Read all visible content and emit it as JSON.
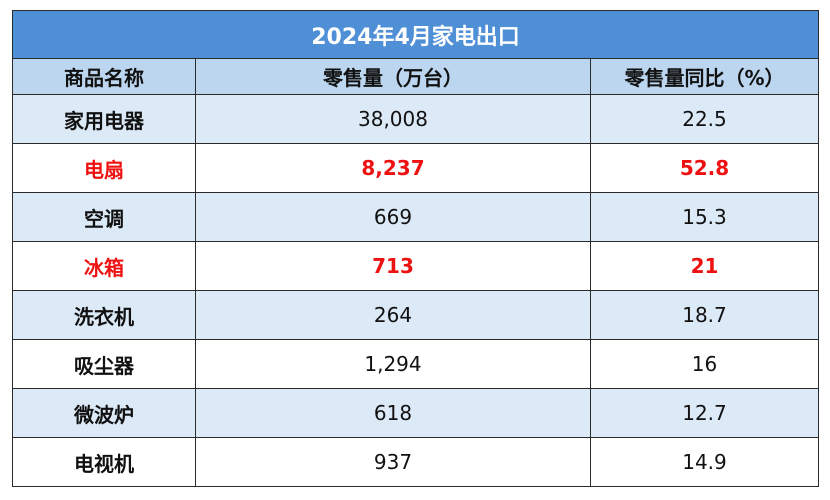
{
  "header": {
    "title": "2024年4月家电出口"
  },
  "table": {
    "columns": [
      "商品名称",
      "零售量（万台）",
      "零售量同比（%）"
    ],
    "rows": [
      [
        "家用电器",
        "38,008",
        "22.5"
      ],
      [
        "电扇",
        "8,237",
        "52.8"
      ],
      [
        "空调",
        "669",
        "15.3"
      ],
      [
        "冰箱",
        "713",
        "21"
      ],
      [
        "洗衣机",
        "264",
        "18.7"
      ],
      [
        "吸尘器",
        "1,294",
        "16"
      ],
      [
        "微波炉",
        "618",
        "12.7"
      ],
      [
        "电视机",
        "937",
        "14.9"
      ]
    ],
    "highlighted_rows": [
      1,
      3
    ],
    "highlight_color": "#ee1111"
  }
}
